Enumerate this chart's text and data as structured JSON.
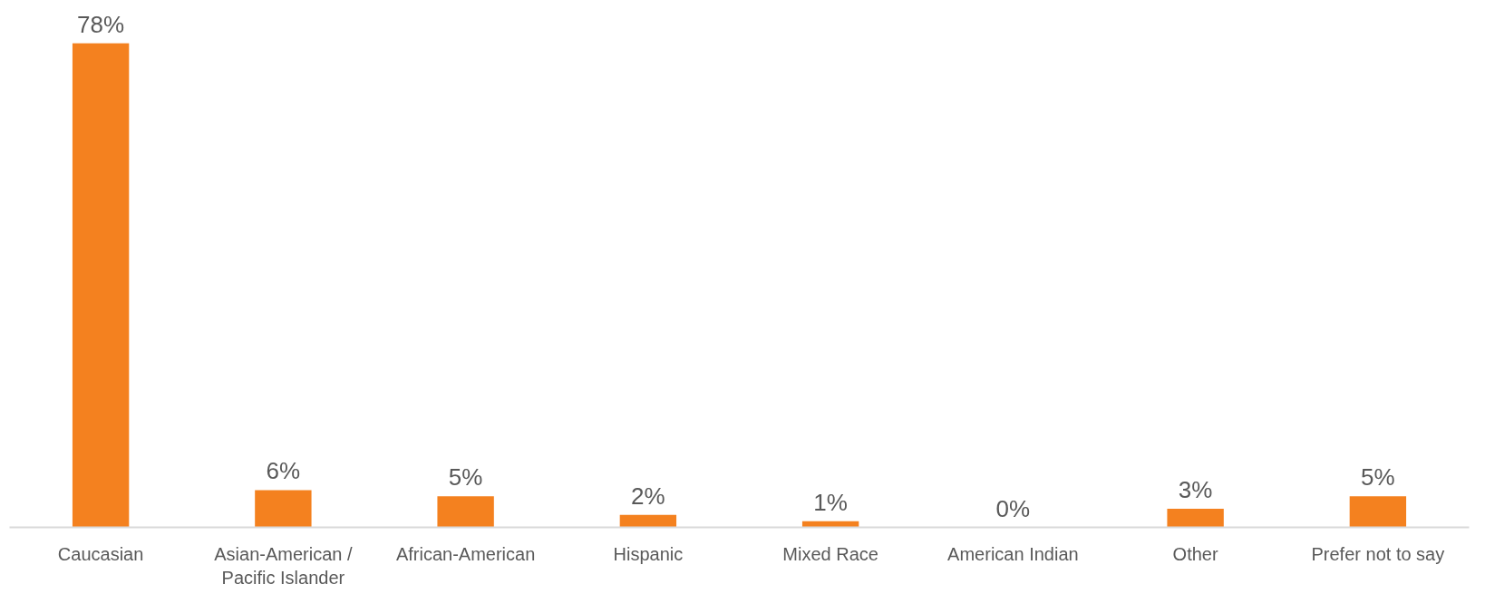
{
  "chart_data": {
    "type": "bar",
    "categories": [
      "Caucasian",
      "Asian-American / Pacific Islander",
      "African-American",
      "Hispanic",
      "Mixed Race",
      "American Indian",
      "Other",
      "Prefer not to say"
    ],
    "values": [
      78,
      6,
      5,
      2,
      1,
      0,
      3,
      5
    ],
    "color": "#f4811f",
    "value_labels": [
      "78%",
      "6%",
      "5%",
      "2%",
      "1%",
      "0%",
      "3%",
      "5%"
    ]
  }
}
